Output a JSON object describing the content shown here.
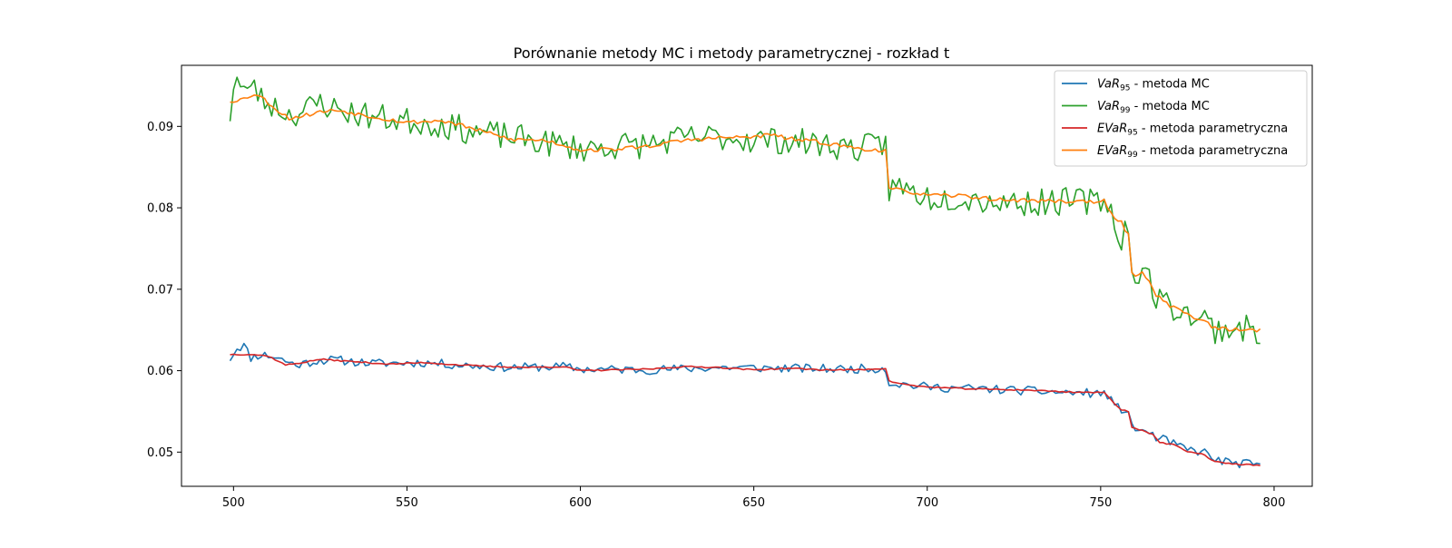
{
  "chart_data": {
    "type": "line",
    "title": "Porównanie metody MC i metody parametrycznej - rozkład t",
    "xlabel": "",
    "ylabel": "",
    "xlim": [
      485,
      811
    ],
    "ylim": [
      0.0458,
      0.0975
    ],
    "x_ticks": [
      500,
      550,
      600,
      650,
      700,
      750,
      800
    ],
    "x_tick_labels": [
      "500",
      "550",
      "600",
      "650",
      "700",
      "750",
      "800"
    ],
    "y_ticks": [
      0.05,
      0.06,
      0.07,
      0.08,
      0.09
    ],
    "y_tick_labels": [
      "0.05",
      "0.06",
      "0.07",
      "0.08",
      "0.09"
    ],
    "grid": false,
    "legend_position": "top-right",
    "x_range": [
      499,
      796
    ],
    "series": [
      {
        "key": "var95",
        "name_main": "VaR",
        "name_sub": "95",
        "name_rest": " - metoda MC",
        "color": "#1f77b4",
        "knots": [
          [
            499,
            0.0615
          ],
          [
            501,
            0.0628
          ],
          [
            503,
            0.0631
          ],
          [
            505,
            0.0616
          ],
          [
            508,
            0.062
          ],
          [
            512,
            0.0617
          ],
          [
            518,
            0.0607
          ],
          [
            525,
            0.0613
          ],
          [
            530,
            0.0613
          ],
          [
            540,
            0.0609
          ],
          [
            555,
            0.061
          ],
          [
            565,
            0.0607
          ],
          [
            580,
            0.0604
          ],
          [
            595,
            0.0605
          ],
          [
            600,
            0.0602
          ],
          [
            620,
            0.0601
          ],
          [
            640,
            0.0604
          ],
          [
            660,
            0.0603
          ],
          [
            675,
            0.0602
          ],
          [
            687,
            0.0603
          ],
          [
            688,
            0.0602
          ],
          [
            689,
            0.0585
          ],
          [
            700,
            0.058
          ],
          [
            720,
            0.0577
          ],
          [
            740,
            0.0573
          ],
          [
            751,
            0.0572
          ],
          [
            752,
            0.057
          ],
          [
            754,
            0.0556
          ],
          [
            756,
            0.0553
          ],
          [
            758,
            0.055
          ],
          [
            759,
            0.053
          ],
          [
            762,
            0.0527
          ],
          [
            765,
            0.052
          ],
          [
            770,
            0.0512
          ],
          [
            775,
            0.0503
          ],
          [
            780,
            0.05
          ],
          [
            782,
            0.0492
          ],
          [
            786,
            0.0488
          ],
          [
            790,
            0.0486
          ],
          [
            796,
            0.0484
          ]
        ],
        "noise": 0.00055,
        "seed": 11
      },
      {
        "key": "var99",
        "name_main": "VaR",
        "name_sub": "99",
        "name_rest": " - metoda MC",
        "color": "#2ca02c",
        "knots": [
          [
            499,
            0.0915
          ],
          [
            500,
            0.095
          ],
          [
            501,
            0.0958
          ],
          [
            502,
            0.0948
          ],
          [
            504,
            0.0936
          ],
          [
            505,
            0.0958
          ],
          [
            508,
            0.0933
          ],
          [
            512,
            0.0925
          ],
          [
            516,
            0.0915
          ],
          [
            520,
            0.0918
          ],
          [
            525,
            0.093
          ],
          [
            530,
            0.092
          ],
          [
            540,
            0.0912
          ],
          [
            550,
            0.0907
          ],
          [
            560,
            0.0902
          ],
          [
            570,
            0.0893
          ],
          [
            580,
            0.0887
          ],
          [
            590,
            0.088
          ],
          [
            600,
            0.0873
          ],
          [
            610,
            0.0876
          ],
          [
            620,
            0.0878
          ],
          [
            630,
            0.0885
          ],
          [
            640,
            0.0887
          ],
          [
            650,
            0.0884
          ],
          [
            660,
            0.0882
          ],
          [
            670,
            0.0878
          ],
          [
            680,
            0.0873
          ],
          [
            687,
            0.0876
          ],
          [
            688,
            0.0883
          ],
          [
            689,
            0.0823
          ],
          [
            692,
            0.0826
          ],
          [
            700,
            0.0813
          ],
          [
            710,
            0.0813
          ],
          [
            720,
            0.0808
          ],
          [
            730,
            0.0806
          ],
          [
            740,
            0.0808
          ],
          [
            750,
            0.0808
          ],
          [
            751,
            0.0813
          ],
          [
            753,
            0.08
          ],
          [
            754,
            0.077
          ],
          [
            756,
            0.0765
          ],
          [
            757,
            0.0775
          ],
          [
            758,
            0.0763
          ],
          [
            759,
            0.0715
          ],
          [
            760,
            0.0723
          ],
          [
            762,
            0.072
          ],
          [
            764,
            0.0713
          ],
          [
            766,
            0.069
          ],
          [
            770,
            0.068
          ],
          [
            775,
            0.067
          ],
          [
            780,
            0.0663
          ],
          [
            783,
            0.065
          ],
          [
            790,
            0.0653
          ],
          [
            796,
            0.0647
          ]
        ],
        "noise": 0.0017,
        "seed": 23
      },
      {
        "key": "evar95",
        "name_main": "EVaR",
        "name_sub": "95",
        "name_rest": " - metoda parametryczna",
        "color": "#d62728",
        "knots": [
          [
            499,
            0.062
          ],
          [
            505,
            0.062
          ],
          [
            510,
            0.0618
          ],
          [
            515,
            0.0607
          ],
          [
            520,
            0.061
          ],
          [
            525,
            0.0614
          ],
          [
            535,
            0.0611
          ],
          [
            545,
            0.0608
          ],
          [
            555,
            0.061
          ],
          [
            565,
            0.0607
          ],
          [
            575,
            0.0605
          ],
          [
            585,
            0.0604
          ],
          [
            595,
            0.0605
          ],
          [
            600,
            0.06
          ],
          [
            610,
            0.0601
          ],
          [
            620,
            0.0602
          ],
          [
            630,
            0.0605
          ],
          [
            640,
            0.0604
          ],
          [
            650,
            0.0601
          ],
          [
            660,
            0.0603
          ],
          [
            670,
            0.0601
          ],
          [
            680,
            0.0601
          ],
          [
            688,
            0.0603
          ],
          [
            689,
            0.0587
          ],
          [
            695,
            0.0582
          ],
          [
            700,
            0.058
          ],
          [
            710,
            0.0578
          ],
          [
            720,
            0.0577
          ],
          [
            730,
            0.0576
          ],
          [
            740,
            0.0574
          ],
          [
            751,
            0.0573
          ],
          [
            754,
            0.056
          ],
          [
            756,
            0.0552
          ],
          [
            758,
            0.055
          ],
          [
            759,
            0.053
          ],
          [
            762,
            0.0527
          ],
          [
            765,
            0.0522
          ],
          [
            767,
            0.0512
          ],
          [
            772,
            0.0508
          ],
          [
            775,
            0.05
          ],
          [
            780,
            0.0497
          ],
          [
            782,
            0.049
          ],
          [
            786,
            0.0486
          ],
          [
            790,
            0.0485
          ],
          [
            796,
            0.0484
          ]
        ],
        "noise": 8e-05,
        "seed": 37
      },
      {
        "key": "evar99",
        "name_main": "EVaR",
        "name_sub": "99",
        "name_rest": " - metoda parametryczna",
        "color": "#ff7f0e",
        "knots": [
          [
            499,
            0.0931
          ],
          [
            503,
            0.0934
          ],
          [
            506,
            0.094
          ],
          [
            508,
            0.0936
          ],
          [
            512,
            0.0922
          ],
          [
            516,
            0.091
          ],
          [
            520,
            0.0913
          ],
          [
            525,
            0.0918
          ],
          [
            530,
            0.092
          ],
          [
            540,
            0.0912
          ],
          [
            550,
            0.0905
          ],
          [
            560,
            0.0907
          ],
          [
            565,
            0.0902
          ],
          [
            570,
            0.0896
          ],
          [
            575,
            0.089
          ],
          [
            580,
            0.0884
          ],
          [
            590,
            0.0883
          ],
          [
            600,
            0.0871
          ],
          [
            610,
            0.0872
          ],
          [
            620,
            0.0876
          ],
          [
            630,
            0.0883
          ],
          [
            640,
            0.0886
          ],
          [
            650,
            0.0887
          ],
          [
            655,
            0.089
          ],
          [
            660,
            0.0885
          ],
          [
            670,
            0.088
          ],
          [
            680,
            0.0873
          ],
          [
            688,
            0.087
          ],
          [
            689,
            0.0823
          ],
          [
            695,
            0.082
          ],
          [
            700,
            0.0815
          ],
          [
            710,
            0.0815
          ],
          [
            720,
            0.081
          ],
          [
            730,
            0.0809
          ],
          [
            740,
            0.0808
          ],
          [
            751,
            0.0808
          ],
          [
            754,
            0.0785
          ],
          [
            756,
            0.0782
          ],
          [
            757,
            0.0772
          ],
          [
            758,
            0.077
          ],
          [
            759,
            0.0718
          ],
          [
            762,
            0.0719
          ],
          [
            764,
            0.0712
          ],
          [
            766,
            0.0693
          ],
          [
            770,
            0.068
          ],
          [
            775,
            0.067
          ],
          [
            780,
            0.066
          ],
          [
            783,
            0.0652
          ],
          [
            790,
            0.065
          ],
          [
            796,
            0.065
          ]
        ],
        "noise": 0.00025,
        "seed": 53
      }
    ]
  }
}
